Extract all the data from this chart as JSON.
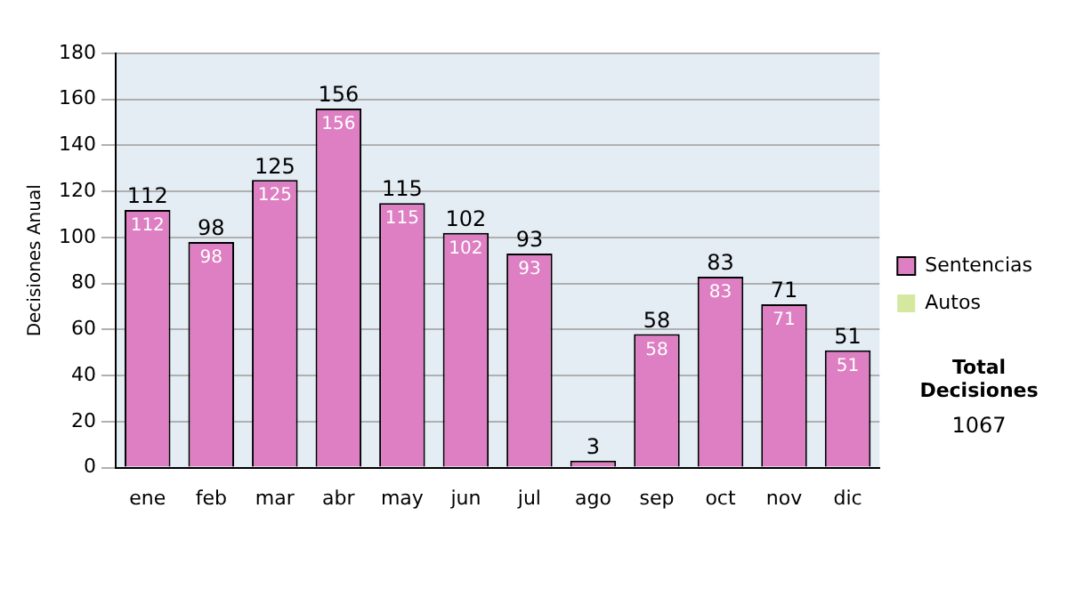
{
  "chart_data": {
    "type": "bar",
    "stacked": true,
    "ylabel": "Decisiones Anual",
    "categories": [
      "ene",
      "feb",
      "mar",
      "abr",
      "may",
      "jun",
      "jul",
      "ago",
      "sep",
      "oct",
      "nov",
      "dic"
    ],
    "series": [
      {
        "name": "Sentencias",
        "color": "#dd7fc2",
        "values": [
          112,
          98,
          125,
          156,
          115,
          102,
          93,
          3,
          58,
          83,
          71,
          51
        ],
        "value_labels": [
          "112",
          "98",
          "125",
          "156",
          "115",
          "102",
          "93",
          null,
          "58",
          "83",
          "71",
          "51"
        ]
      },
      {
        "name": "Autos",
        "color": "#d4e8a0",
        "values": [
          0,
          0,
          0,
          0,
          0,
          0,
          0,
          0,
          0,
          0,
          0,
          0
        ]
      }
    ],
    "ylim": [
      0,
      180
    ],
    "yticks": [
      0,
      20,
      40,
      60,
      80,
      100,
      120,
      140,
      160,
      180
    ],
    "grid": "y",
    "legend": "right",
    "totals": [
      "112",
      "98",
      "125",
      "156",
      "115",
      "102",
      "93",
      "3",
      "58",
      "83",
      "71",
      "51"
    ],
    "annotations": [
      "Total Decisiones",
      "1067"
    ]
  }
}
